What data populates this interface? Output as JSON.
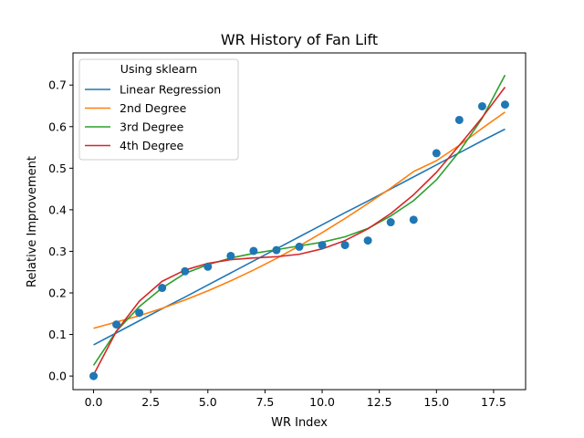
{
  "chart_data": {
    "type": "scatter",
    "title": "WR History of Fan Lift",
    "xlabel": "WR Index",
    "ylabel": "Relative Improvement",
    "xlim": [
      -0.9,
      18.9
    ],
    "ylim": [
      -0.0327,
      0.7773
    ],
    "xticks": [
      0.0,
      2.5,
      5.0,
      7.5,
      10.0,
      12.5,
      15.0,
      17.5
    ],
    "xtick_labels": [
      "0.0",
      "2.5",
      "5.0",
      "7.5",
      "10.0",
      "12.5",
      "15.0",
      "17.5"
    ],
    "yticks": [
      0.0,
      0.1,
      0.2,
      0.3,
      0.4,
      0.5,
      0.6,
      0.7
    ],
    "ytick_labels": [
      "0.0",
      "0.1",
      "0.2",
      "0.3",
      "0.4",
      "0.5",
      "0.6",
      "0.7"
    ],
    "grid": false,
    "legend": {
      "title": "Using sklearn",
      "placement": "top-left"
    },
    "points": {
      "color": "#1f77b4",
      "x": [
        0,
        1,
        2,
        3,
        4,
        5,
        6,
        7,
        8,
        9,
        10,
        11,
        12,
        13,
        14,
        15,
        16,
        17,
        18
      ],
      "y": [
        0.0,
        0.124,
        0.152,
        0.212,
        0.252,
        0.263,
        0.289,
        0.301,
        0.303,
        0.311,
        0.315,
        0.315,
        0.326,
        0.37,
        0.376,
        0.536,
        0.616,
        0.649,
        0.653
      ]
    },
    "series": [
      {
        "name": "Linear Regression",
        "color": "#1f77b4",
        "x": [
          0,
          1,
          2,
          3,
          4,
          5,
          6,
          7,
          8,
          9,
          10,
          11,
          12,
          13,
          14,
          15,
          16,
          17,
          18
        ],
        "y": [
          0.075,
          0.104,
          0.133,
          0.162,
          0.19,
          0.219,
          0.248,
          0.277,
          0.306,
          0.335,
          0.364,
          0.393,
          0.421,
          0.45,
          0.479,
          0.508,
          0.537,
          0.566,
          0.594
        ]
      },
      {
        "name": "2nd Degree",
        "color": "#ff7f0e",
        "x": [
          0,
          1,
          2,
          3,
          4,
          5,
          6,
          7,
          8,
          9,
          10,
          11,
          12,
          13,
          14,
          15,
          16,
          17,
          18
        ],
        "y": [
          0.115,
          0.13,
          0.145,
          0.163,
          0.183,
          0.205,
          0.229,
          0.255,
          0.283,
          0.313,
          0.345,
          0.379,
          0.415,
          0.452,
          0.492,
          0.518,
          0.555,
          0.596,
          0.635
        ]
      },
      {
        "name": "3rd Degree",
        "color": "#2ca02c",
        "x": [
          0,
          1,
          2,
          3,
          4,
          5,
          6,
          7,
          8,
          9,
          10,
          11,
          12,
          13,
          14,
          15,
          16,
          17,
          18
        ],
        "y": [
          0.026,
          0.108,
          0.167,
          0.212,
          0.247,
          0.268,
          0.284,
          0.295,
          0.304,
          0.313,
          0.322,
          0.335,
          0.355,
          0.385,
          0.422,
          0.472,
          0.54,
          0.62,
          0.724
        ]
      },
      {
        "name": "4th Degree",
        "color": "#d62728",
        "x": [
          0,
          1,
          2,
          3,
          4,
          5,
          6,
          7,
          8,
          9,
          10,
          11,
          12,
          13,
          14,
          15,
          16,
          17,
          18
        ],
        "y": [
          0.003,
          0.108,
          0.18,
          0.228,
          0.255,
          0.271,
          0.28,
          0.284,
          0.287,
          0.293,
          0.306,
          0.326,
          0.354,
          0.391,
          0.436,
          0.49,
          0.555,
          0.622,
          0.695
        ]
      }
    ]
  }
}
